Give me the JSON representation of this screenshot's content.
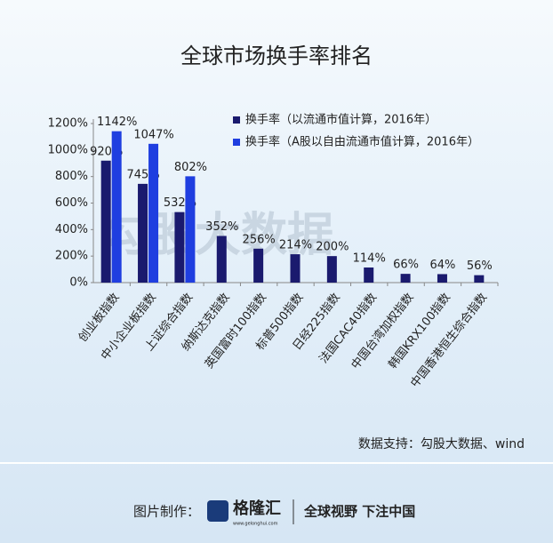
{
  "chart_data": {
    "type": "bar",
    "title": "全球市场换手率排名",
    "categories": [
      "创业板指数",
      "中小企业板指数",
      "上证综合指数",
      "纳斯达克指数",
      "英国富时100指数",
      "标普500指数",
      "日经225指数",
      "法国CAC40指数",
      "中国台湾加权指数",
      "韩国KRX100指数",
      "中国香港恒生综合指数"
    ],
    "series": [
      {
        "name": "换手率（以流通市值计算，2016年）",
        "color": "#1a1a6e",
        "values": [
          920,
          745,
          532,
          352,
          256,
          214,
          200,
          114,
          66,
          64,
          56
        ],
        "value_labels": [
          "920%",
          "745%",
          "532%",
          "352%",
          "256%",
          "214%",
          "200%",
          "114%",
          "66%",
          "64%",
          "56%"
        ]
      },
      {
        "name": "换手率（A股以自由流通市值计算，2016年）",
        "color": "#1f3ee0",
        "values": [
          1142,
          1047,
          802,
          null,
          null,
          null,
          null,
          null,
          null,
          null,
          null
        ],
        "value_labels": [
          "1142%",
          "1047%",
          "802%",
          null,
          null,
          null,
          null,
          null,
          null,
          null,
          null
        ]
      }
    ],
    "ylim": [
      0,
      1200
    ],
    "yticks": [
      {
        "value": 0,
        "label": "0%"
      },
      {
        "value": 200,
        "label": "200%"
      },
      {
        "value": 400,
        "label": "400%"
      },
      {
        "value": 600,
        "label": "600%"
      },
      {
        "value": 800,
        "label": "800%"
      },
      {
        "value": 1000,
        "label": "1000%"
      },
      {
        "value": 1200,
        "label": "1200%"
      }
    ],
    "legend": "top-right",
    "watermark": "勾股大数据",
    "source": "数据支持：勾股大数据、wind"
  },
  "footer": {
    "made_by": "图片制作：",
    "brand": "格隆汇",
    "url": "www.gelonghui.com",
    "slogan": "全球视野 下注中国"
  }
}
